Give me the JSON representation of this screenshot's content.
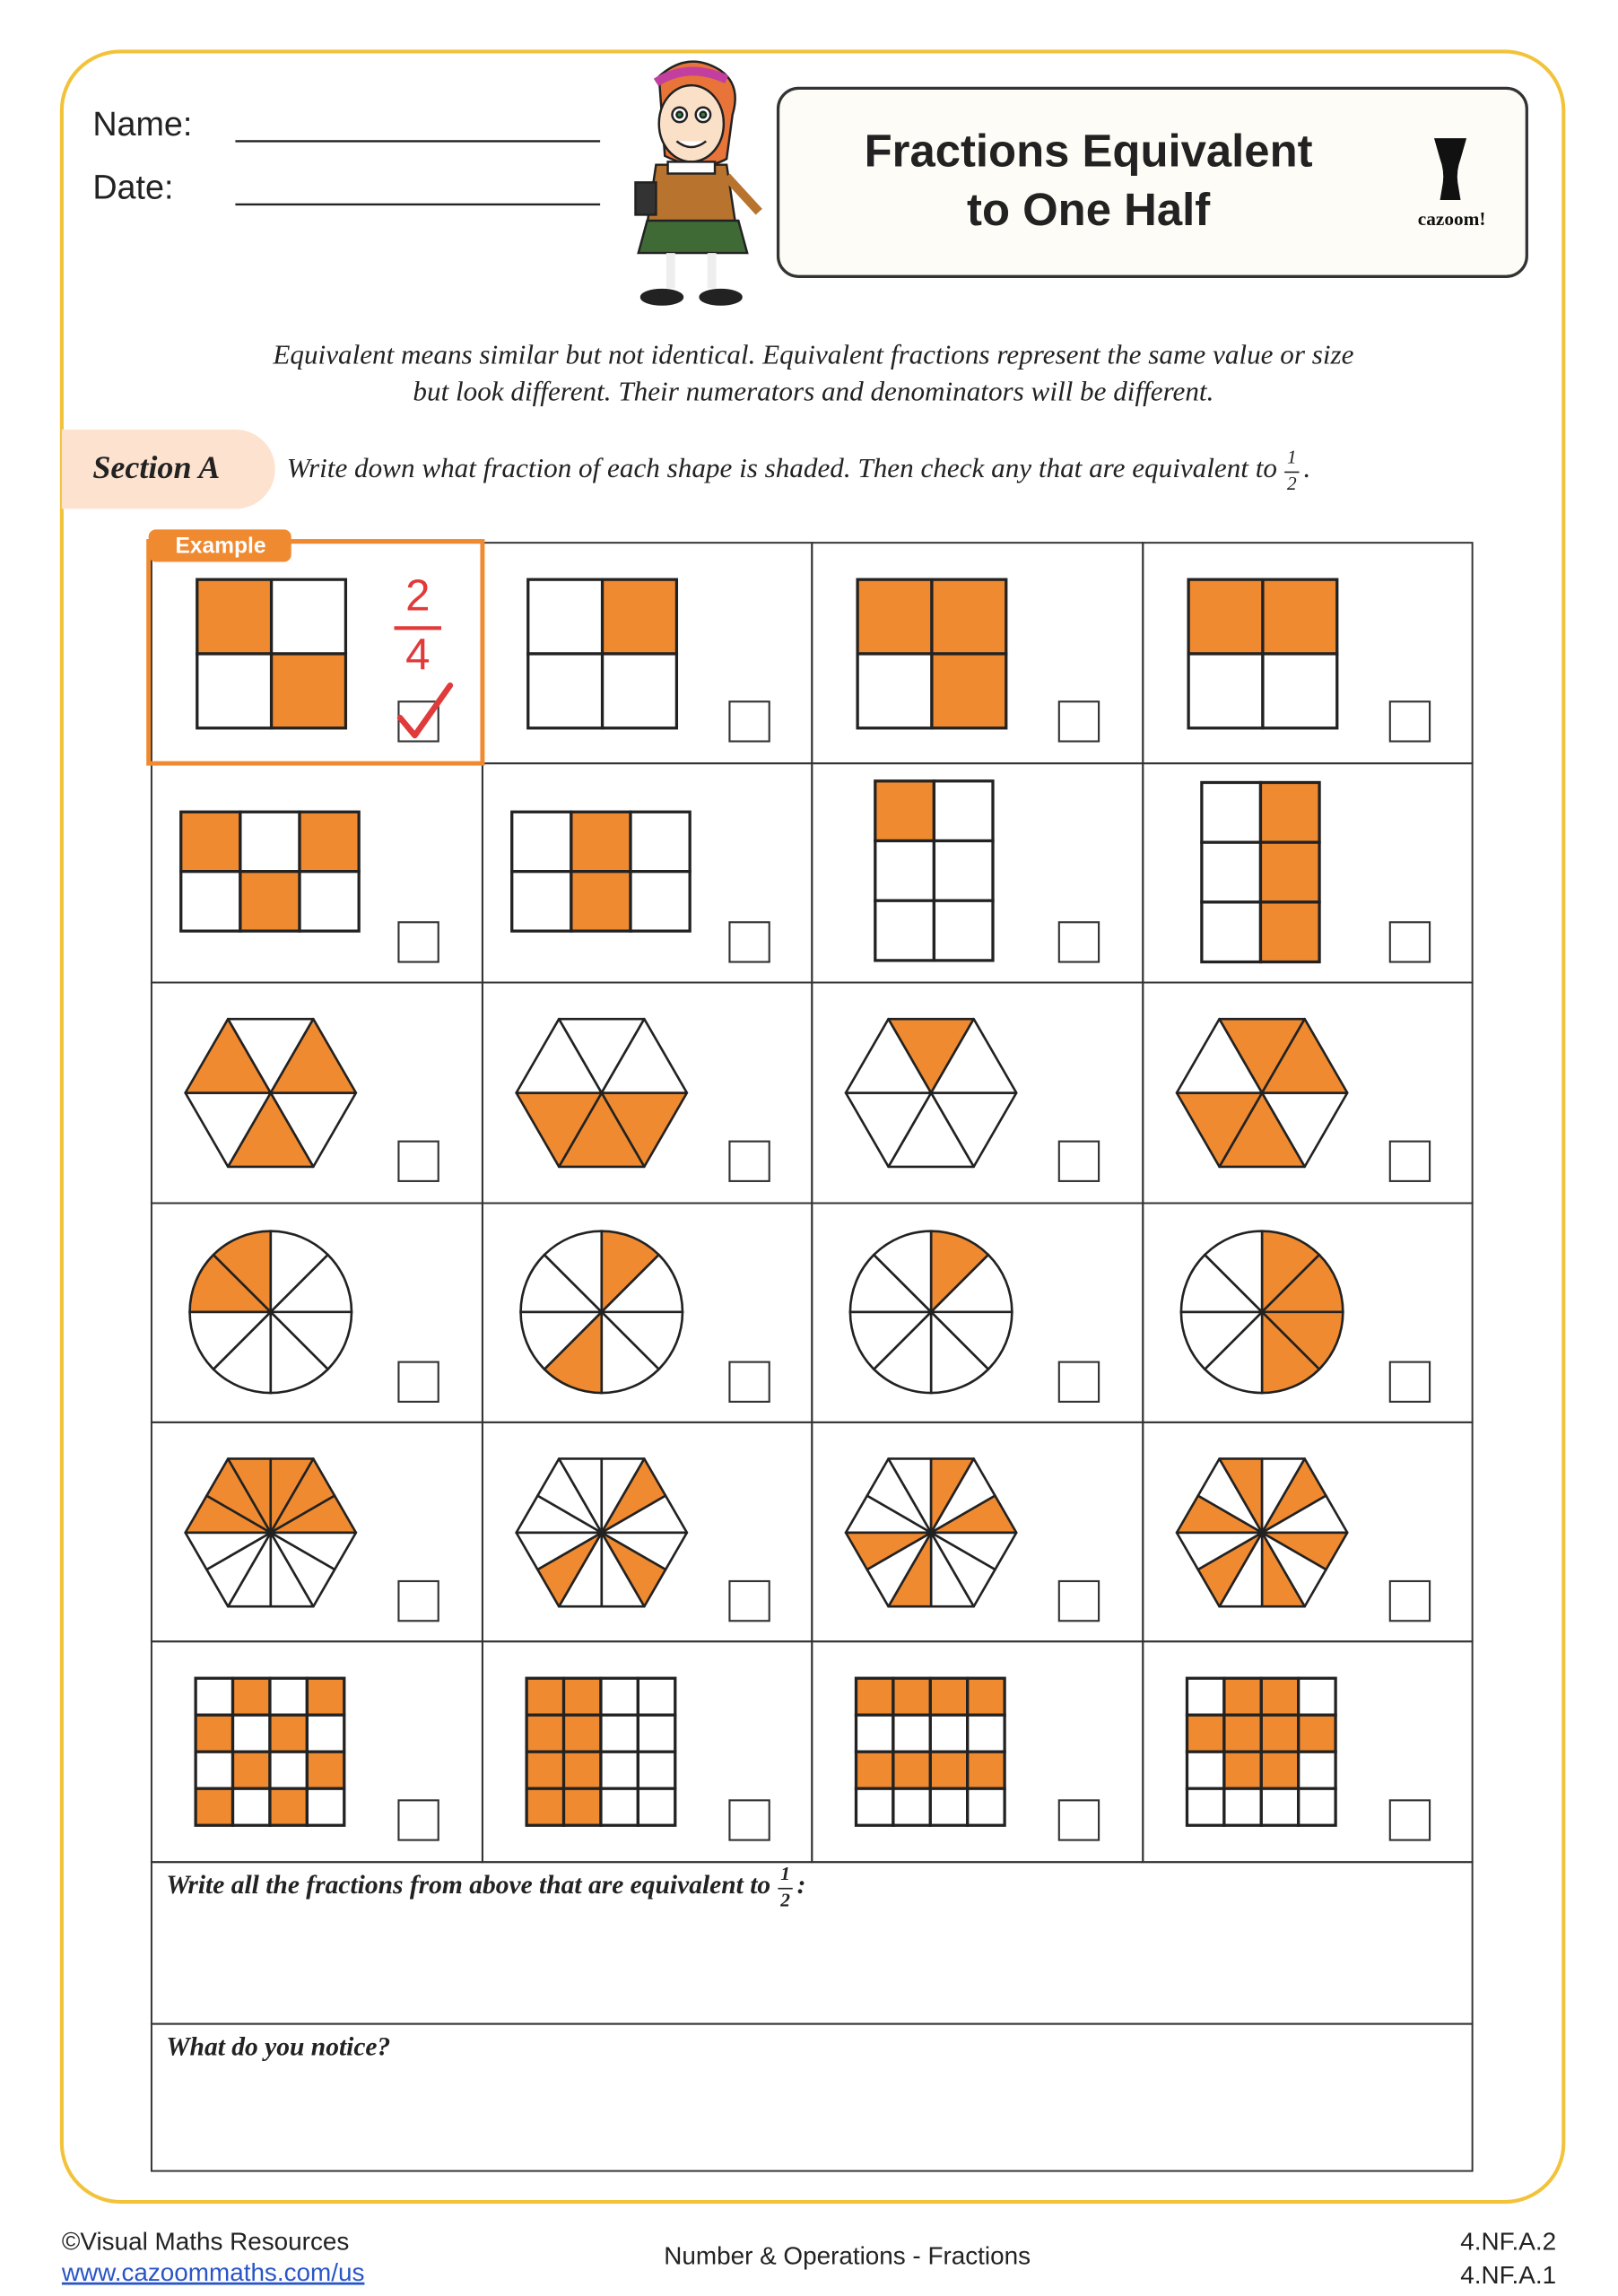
{
  "header": {
    "name_label": "Name:",
    "date_label": "Date:",
    "title_lines": [
      "Fractions Equivalent",
      "to One Half"
    ],
    "logo_text": "cazoom!"
  },
  "intro": [
    "Equivalent means similar but not identical. Equivalent fractions represent the same value or size",
    "but look different. Their numerators and denominators will be different."
  ],
  "section": {
    "label": "Section A",
    "instruction": {
      "text": "Write down what fraction of each shape is shaded. Then check any that are equivalent to",
      "fraction": {
        "numerator": "1",
        "denominator": "2"
      },
      "end": "."
    }
  },
  "example": {
    "tag": "Example",
    "answer": {
      "numerator": "2",
      "denominator": "4"
    }
  },
  "questions": [
    {
      "text": "Write all the fractions from above that are equivalent to",
      "fraction": {
        "numerator": "1",
        "denominator": "2"
      },
      "end": ":"
    },
    {
      "text": "What do you notice?"
    }
  ],
  "footer": {
    "copyright": "©Visual Maths Resources",
    "url": "www.cazoommaths.com/us",
    "topic": "Number & Operations - Fractions",
    "standards": [
      "4.NF.A.2",
      "4.NF.A.1"
    ]
  }
}
